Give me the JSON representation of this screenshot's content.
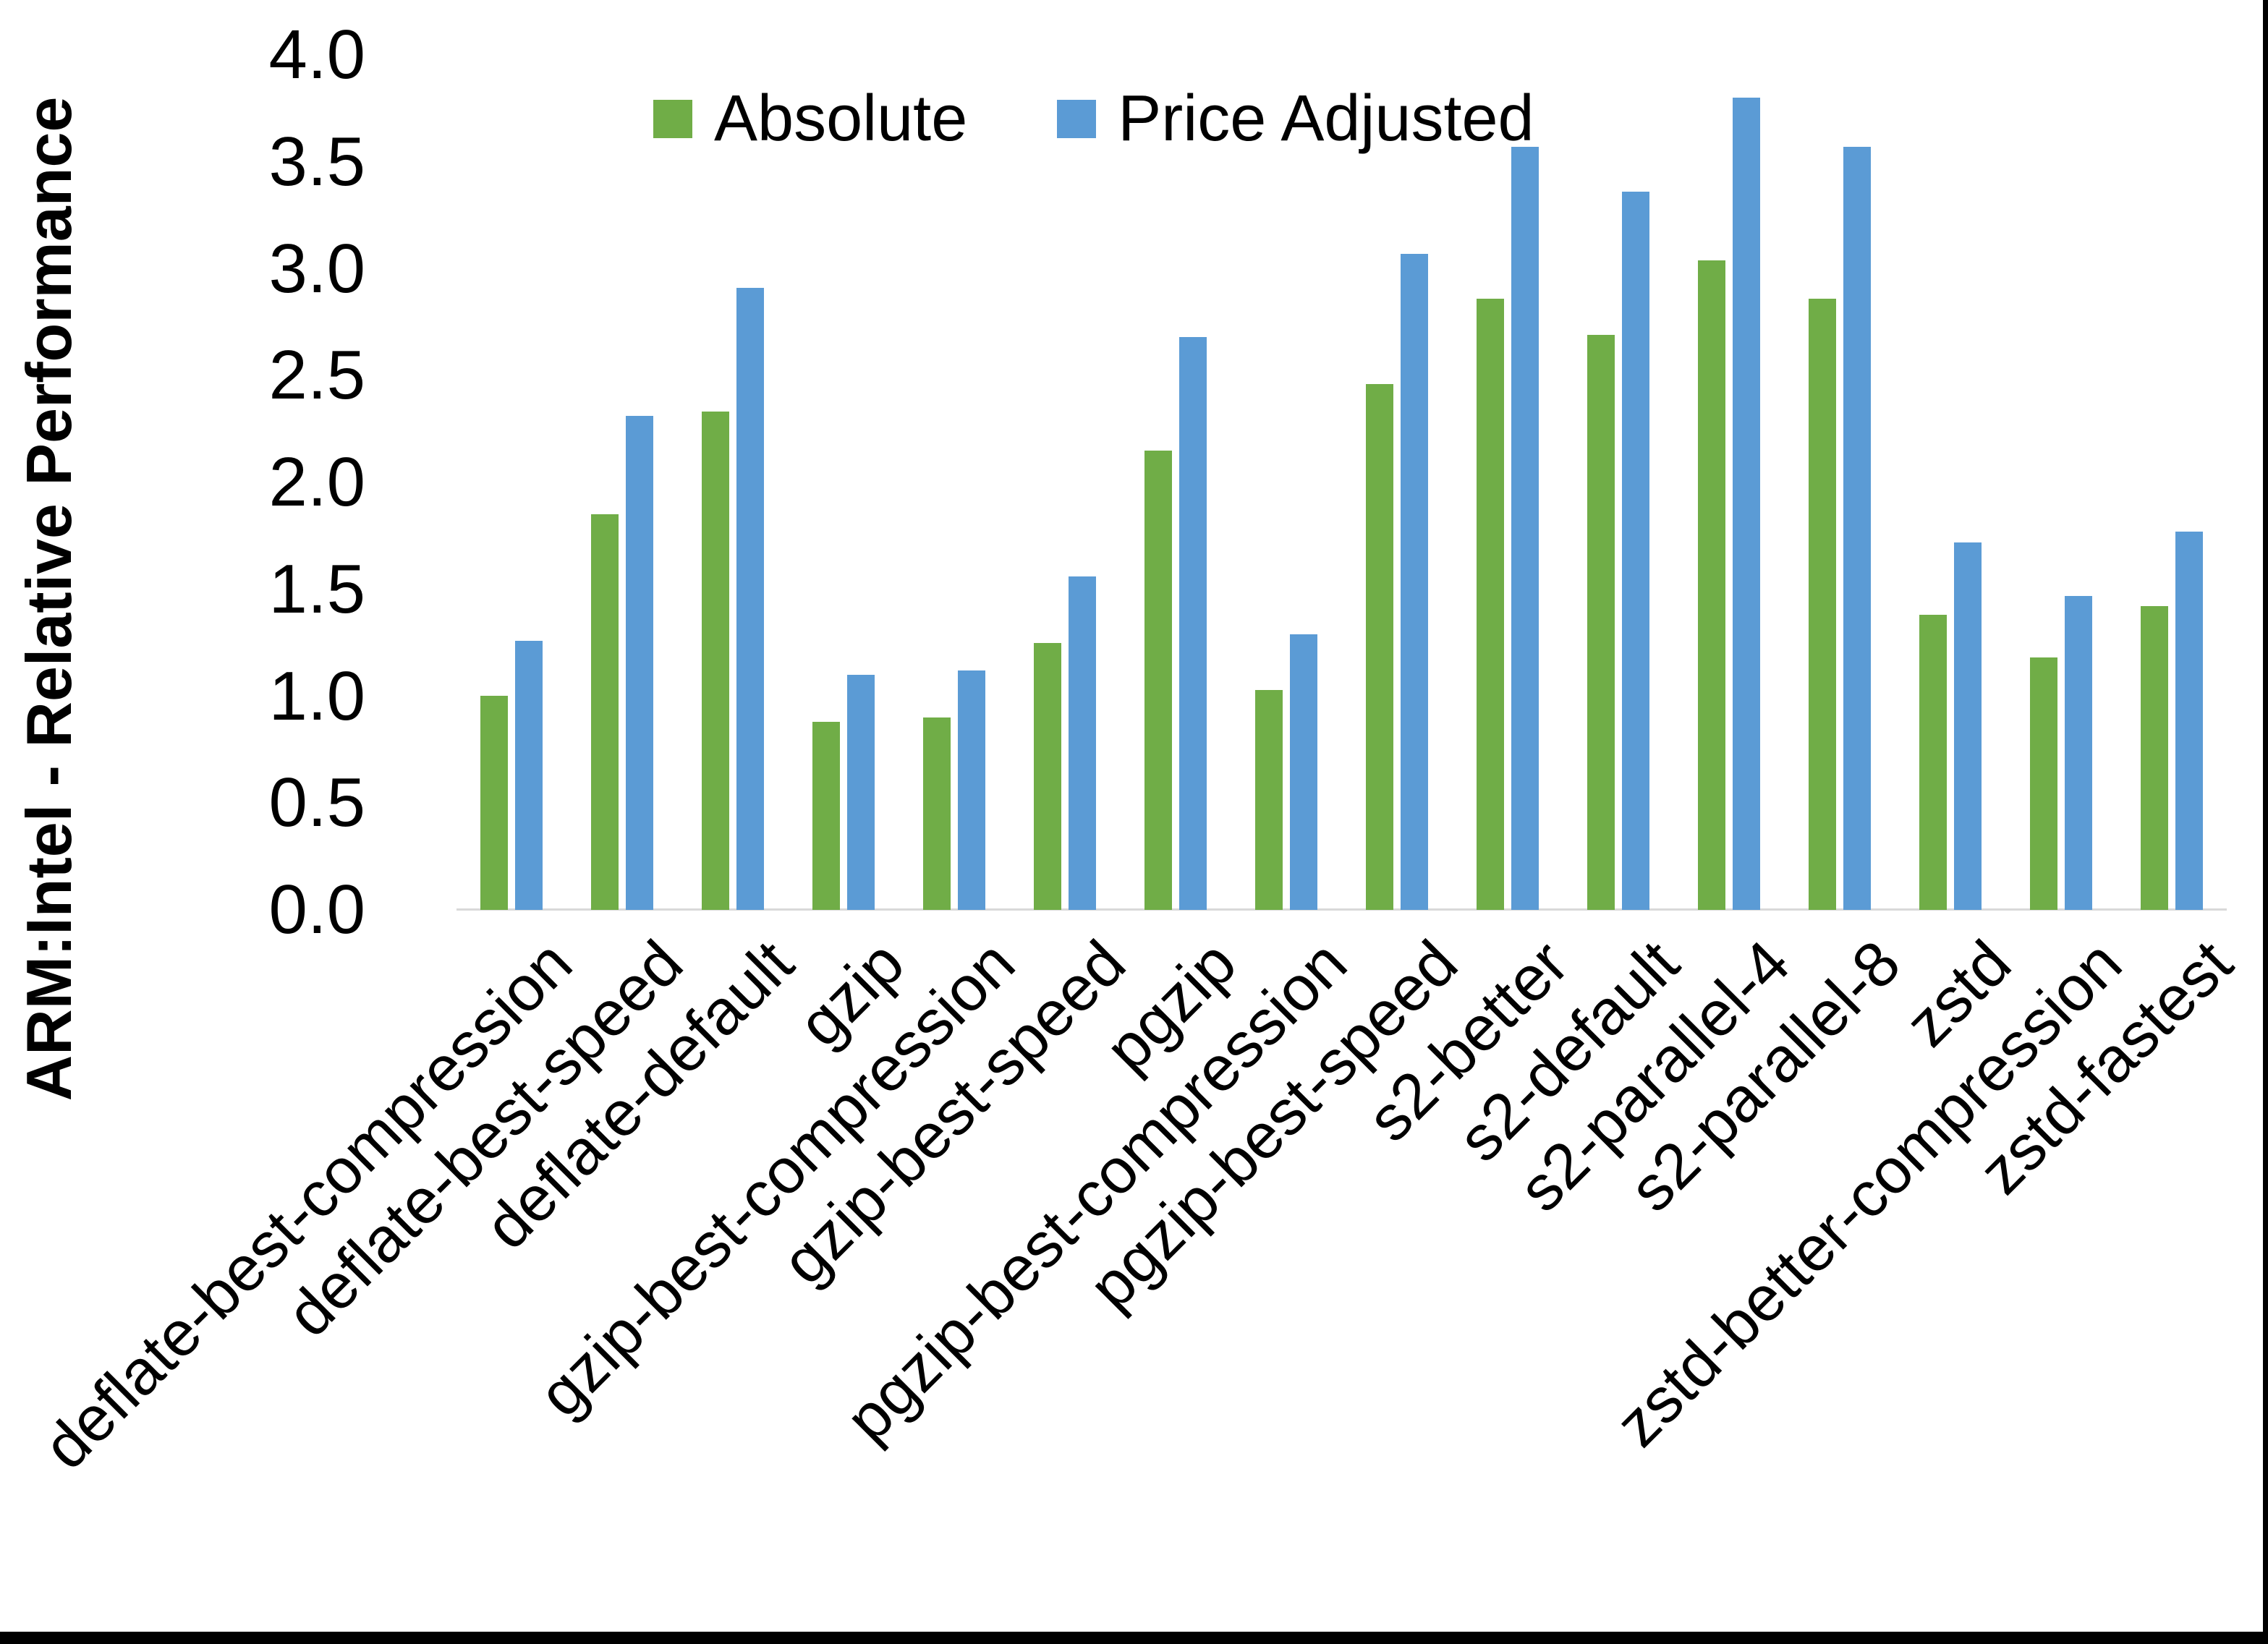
{
  "figure": {
    "background": "#ffffff",
    "edge_bar_color": "#000000"
  },
  "legend": {
    "items": [
      {
        "label": "Absolute",
        "color": "#70AD47"
      },
      {
        "label": "Price Adjusted",
        "color": "#5B9BD5"
      }
    ]
  },
  "y_axis": {
    "title": "ARM:Intel - Relative Performance",
    "tick_labels": [
      "0.0",
      "0.5",
      "1.0",
      "1.5",
      "2.0",
      "2.5",
      "3.0",
      "3.5",
      "4.0"
    ]
  },
  "chart_data": {
    "type": "bar",
    "title": "",
    "xlabel": "",
    "ylabel": "ARM:Intel - Relative Performance",
    "ylim": [
      0.0,
      4.0
    ],
    "ytick_step": 0.5,
    "grid": false,
    "legend_position": "top",
    "baseline_color": "#d9d9d9",
    "categories": [
      "deflate-best-compression",
      "deflate-best-speed",
      "deflate-default",
      "gzip",
      "gzip-best-compression",
      "gzip-best-speed",
      "pgzip",
      "pgzip-best-compression",
      "pgzip-best-speed",
      "s2-better",
      "s2-default",
      "s2-parallel-4",
      "s2-parallel-8",
      "zstd",
      "zstd-better-compression",
      "zstd-fastest"
    ],
    "series": [
      {
        "name": "Absolute",
        "color": "#70AD47",
        "values": [
          1.0,
          1.85,
          2.33,
          0.88,
          0.9,
          1.25,
          2.15,
          1.03,
          2.46,
          2.86,
          2.69,
          3.04,
          2.86,
          1.38,
          1.18,
          1.42
        ]
      },
      {
        "name": "Price Adjusted",
        "color": "#5B9BD5",
        "values": [
          1.26,
          2.31,
          2.91,
          1.1,
          1.12,
          1.56,
          2.68,
          1.29,
          3.07,
          3.57,
          3.36,
          3.8,
          3.57,
          1.72,
          1.47,
          1.77
        ]
      }
    ]
  }
}
